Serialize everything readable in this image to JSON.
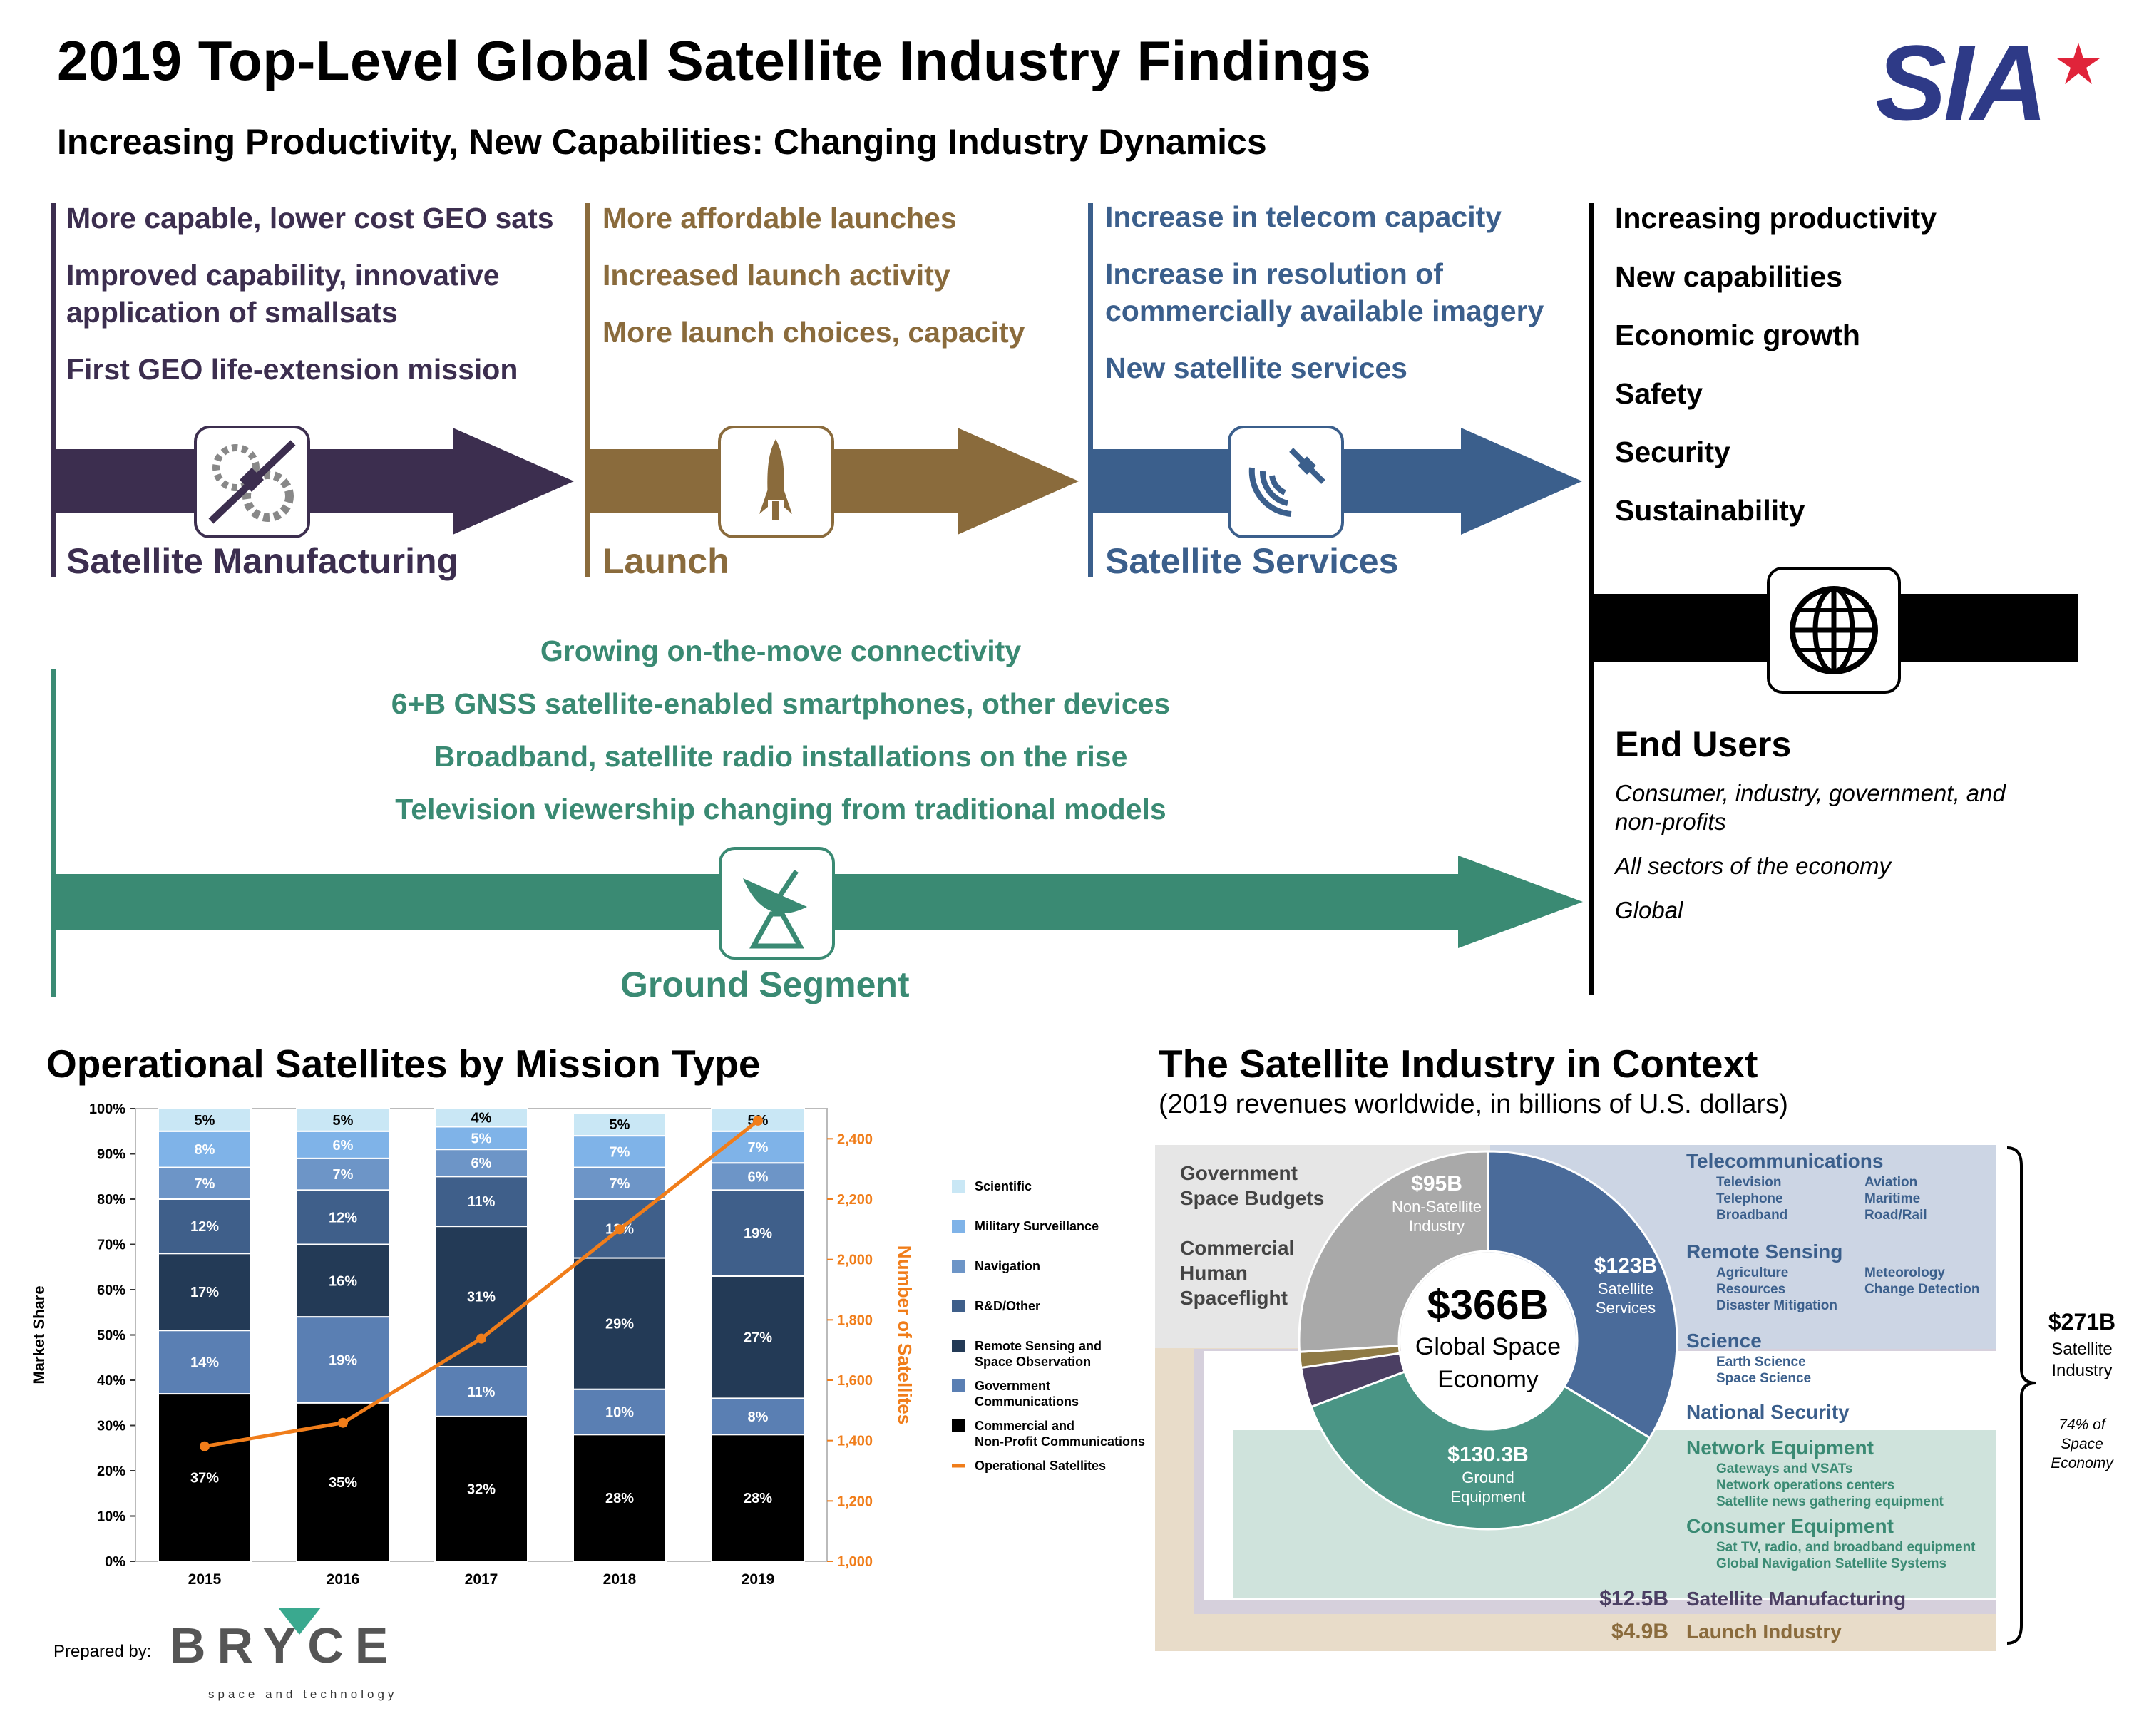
{
  "title": "2019 Top-Level Global Satellite Industry Findings",
  "subtitle": "Increasing Productivity, New Capabilities: Changing Industry Dynamics",
  "logo_text": "SIA",
  "colors": {
    "manufacturing": "#3c2e4f",
    "launch": "#8a6b3c",
    "services": "#3b5f8c",
    "ground": "#3a8a73",
    "orange": "#f07d1a"
  },
  "manufacturing": {
    "label": "Satellite Manufacturing",
    "items": [
      "More capable, lower cost GEO sats",
      "Improved capability, innovative application of smallsats",
      "First GEO life-extension mission"
    ],
    "icon": "satellite-gear-icon"
  },
  "launch": {
    "label": "Launch",
    "items": [
      "More affordable launches",
      "Increased launch activity",
      "More launch choices, capacity"
    ],
    "icon": "rocket-icon"
  },
  "services": {
    "label": "Satellite Services",
    "items": [
      "Increase in telecom capacity",
      "Increase in resolution of commercially available imagery",
      "New satellite services"
    ],
    "icon": "satellite-signal-icon"
  },
  "outcomes": [
    "Increasing productivity",
    "New capabilities",
    "Economic growth",
    "Safety",
    "Security",
    "Sustainability"
  ],
  "ground": {
    "label": "Ground Segment",
    "items": [
      "Growing on-the-move connectivity",
      "6+B GNSS satellite-enabled smartphones, other devices",
      "Broadband, satellite radio installations on the rise",
      "Television viewership changing from traditional models"
    ],
    "icon": "satellite-dish-icon"
  },
  "end_users": {
    "heading": "End Users",
    "lines": [
      "Consumer, industry, government, and non-profits",
      "All sectors of the economy",
      "Global"
    ],
    "icon": "globe-icon"
  },
  "chart_title": "Operational Satellites by Mission Type",
  "context_title": "The Satellite Industry in Context",
  "context_subtitle": "(2019 revenues worldwide, in billions of U.S. dollars)",
  "chart_data": {
    "type": "bar",
    "stacked": true,
    "categories": [
      "2015",
      "2016",
      "2017",
      "2018",
      "2019"
    ],
    "ylabel": "Market Share",
    "y2label": "Number of Satellites",
    "ylim": [
      0,
      100
    ],
    "y2lim": [
      1000,
      2500
    ],
    "yticks": [
      "0%",
      "10%",
      "20%",
      "30%",
      "40%",
      "50%",
      "60%",
      "70%",
      "80%",
      "90%",
      "100%"
    ],
    "y2ticks": [
      "1,000",
      "1,200",
      "1,400",
      "1,600",
      "1,800",
      "2,000",
      "2,200",
      "2,400"
    ],
    "series": [
      {
        "name": "Commercial and Non-Profit Communications",
        "color": "#000000",
        "values": [
          37,
          35,
          32,
          28,
          28
        ]
      },
      {
        "name": "Government Communications",
        "color": "#5a7fb3",
        "values": [
          14,
          19,
          11,
          10,
          8
        ]
      },
      {
        "name": "Remote Sensing and Space Observation",
        "color": "#233a56",
        "values": [
          17,
          16,
          31,
          29,
          27
        ]
      },
      {
        "name": "R&D/Other",
        "color": "#3f5f8a",
        "values": [
          12,
          12,
          11,
          13,
          19
        ]
      },
      {
        "name": "Navigation",
        "color": "#6d95c7",
        "values": [
          7,
          7,
          6,
          7,
          6
        ]
      },
      {
        "name": "Military Surveillance",
        "color": "#7fb3e8",
        "values": [
          8,
          6,
          5,
          7,
          7
        ]
      },
      {
        "name": "Scientific",
        "color": "#c9e7f5",
        "values": [
          5,
          5,
          4,
          5,
          5
        ]
      }
    ],
    "line": {
      "name": "Operational Satellites",
      "color": "#f07d1a",
      "values": [
        1381,
        1459,
        1738,
        2100,
        2460
      ]
    },
    "legend_position": "right"
  },
  "context_chart": {
    "type": "pie",
    "total_label": "$366B",
    "total_caption": "Global Space Economy",
    "slices": [
      {
        "label": "$123B",
        "name": "Satellite Services",
        "value": 123
      },
      {
        "label": "$130.3B",
        "name": "Ground Equipment",
        "value": 130.3
      },
      {
        "label": "$12.5B",
        "name": "Satellite Manufacturing",
        "value": 12.5
      },
      {
        "label": "$4.9B",
        "name": "Launch Industry",
        "value": 4.9
      },
      {
        "label": "$95B",
        "name": "Non-Satellite Industry",
        "value": 95
      }
    ],
    "non_sat_items": [
      "Government Space Budgets",
      "Commercial Human Spaceflight"
    ],
    "categories": [
      {
        "name": "Telecommunications",
        "sub_left": [
          "Television",
          "Telephone",
          "Broadband"
        ],
        "sub_right": [
          "Aviation",
          "Maritime",
          "Road/Rail"
        ]
      },
      {
        "name": "Remote Sensing",
        "sub_left": [
          "Agriculture",
          "Resources",
          "Disaster Mitigation"
        ],
        "sub_right": [
          "Meteorology",
          "Change Detection"
        ]
      },
      {
        "name": "Science",
        "sub_left": [
          "Earth Science",
          "Space Science"
        ],
        "sub_right": []
      },
      {
        "name": "National Security",
        "sub_left": [],
        "sub_right": []
      },
      {
        "name": "Network Equipment",
        "sub_left": [
          "Gateways and VSATs",
          "Network operations centers",
          "Satellite news gathering equipment"
        ],
        "sub_right": []
      },
      {
        "name": "Consumer Equipment",
        "sub_left": [
          "Sat TV, radio, and broadband equipment",
          "Global Navigation Satellite Systems"
        ],
        "sub_right": []
      }
    ],
    "satellite_industry": {
      "amount": "$271B",
      "label": "Satellite Industry",
      "share": "74% of Space Economy"
    }
  },
  "prepared_by": "Prepared by:",
  "bryce_logo": "BRYCE",
  "bryce_tagline": "space and technology"
}
